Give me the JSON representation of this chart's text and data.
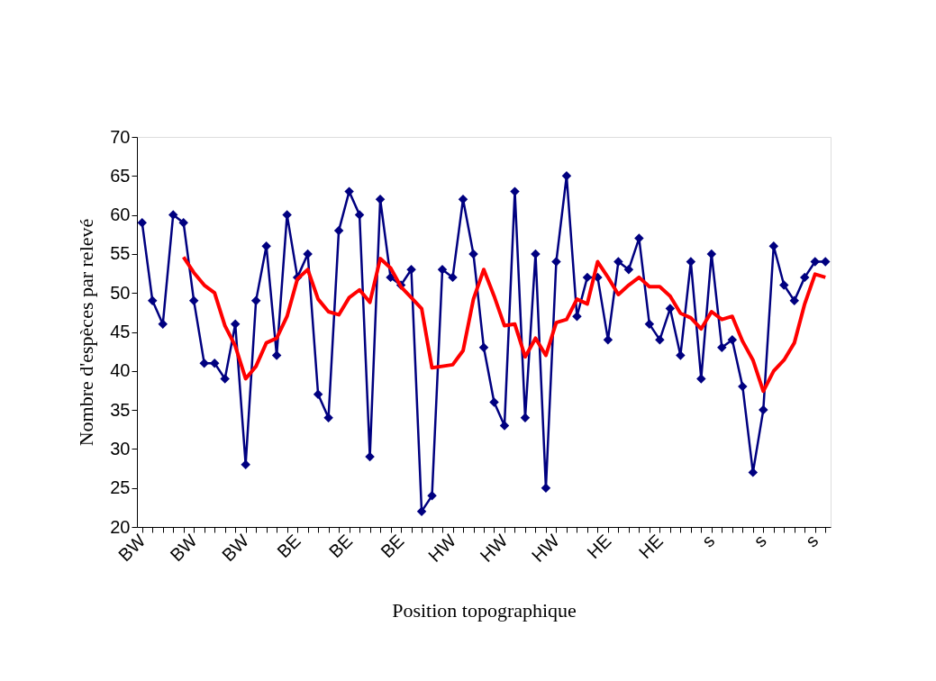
{
  "chart_data": {
    "type": "line",
    "xlabel": "Position topographique",
    "ylabel": "Nombre d'espèces par relevé",
    "categories": [
      "BW",
      null,
      null,
      null,
      null,
      "BW",
      null,
      null,
      null,
      null,
      "BW",
      null,
      null,
      null,
      null,
      "BE",
      null,
      null,
      null,
      null,
      "BE",
      null,
      null,
      null,
      null,
      "BE",
      null,
      null,
      null,
      null,
      "HW",
      null,
      null,
      null,
      null,
      "HW",
      null,
      null,
      null,
      null,
      "HW",
      null,
      null,
      null,
      null,
      "HE",
      null,
      null,
      null,
      null,
      "HE",
      null,
      null,
      null,
      null,
      "s",
      null,
      null,
      null,
      null,
      "s",
      null,
      null,
      null,
      null,
      "s",
      null
    ],
    "series": [
      {
        "color": "#000080",
        "marker": "diamond",
        "values": [
          59,
          49,
          46,
          60,
          59,
          49,
          41,
          41,
          39,
          46,
          28,
          49,
          56,
          42,
          60,
          52,
          55,
          37,
          34,
          58,
          63,
          60,
          29,
          62,
          52,
          51,
          53,
          22,
          24,
          53,
          52,
          62,
          55,
          43,
          36,
          33,
          63,
          34,
          55,
          25,
          54,
          65,
          47,
          52,
          52,
          44,
          54,
          53,
          57,
          46,
          44,
          48,
          42,
          54,
          39,
          55,
          43,
          44,
          38,
          27,
          35,
          56,
          51,
          49,
          52,
          54,
          54
        ]
      },
      {
        "color": "#ff0000",
        "marker": "none",
        "values": [
          null,
          null,
          null,
          null,
          54.6,
          52.6,
          51.0,
          50.0,
          45.8,
          43.2,
          39.0,
          40.6,
          43.6,
          44.2,
          47.0,
          51.8,
          53.0,
          49.2,
          47.6,
          47.2,
          49.4,
          50.4,
          48.8,
          54.4,
          53.2,
          50.8,
          49.4,
          48.0,
          40.4,
          40.6,
          40.8,
          42.6,
          49.2,
          53.0,
          49.6,
          45.8,
          46.0,
          41.8,
          44.2,
          42.0,
          46.2,
          46.6,
          49.2,
          48.6,
          54.0,
          52.0,
          49.8,
          51.0,
          52.0,
          50.8,
          50.8,
          49.6,
          47.4,
          46.8,
          45.4,
          47.6,
          46.6,
          47.0,
          43.8,
          41.4,
          37.4,
          40.0,
          41.4,
          43.6,
          48.6,
          52.4,
          52.0
        ]
      }
    ],
    "ylim": [
      20,
      70
    ],
    "yticks": [
      20,
      25,
      30,
      35,
      40,
      45,
      50,
      55,
      60,
      65,
      70
    ],
    "grid": false
  }
}
